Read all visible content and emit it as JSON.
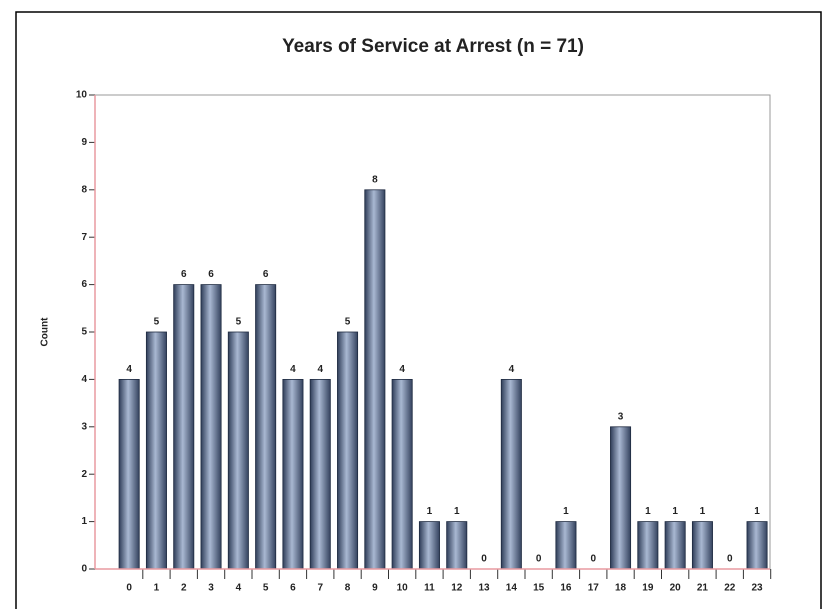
{
  "chart_data": {
    "type": "bar",
    "title": "Years of Service at Arrest (n = 71)",
    "ylabel": "Count",
    "categories": [
      "0",
      "1",
      "2",
      "3",
      "4",
      "5",
      "6",
      "7",
      "8",
      "9",
      "10",
      "11",
      "12",
      "13",
      "14",
      "15",
      "16",
      "17",
      "18",
      "19",
      "20",
      "21",
      "22",
      "23"
    ],
    "values": [
      4,
      5,
      6,
      6,
      5,
      6,
      4,
      4,
      5,
      8,
      4,
      1,
      1,
      0,
      4,
      0,
      1,
      0,
      3,
      1,
      1,
      1,
      0,
      1
    ],
    "color": "#5a6e8e",
    "ylim": [
      0,
      10
    ],
    "yticks": [
      0,
      1,
      2,
      3,
      4,
      5,
      6,
      7,
      8,
      9,
      10
    ],
    "grid": false
  }
}
